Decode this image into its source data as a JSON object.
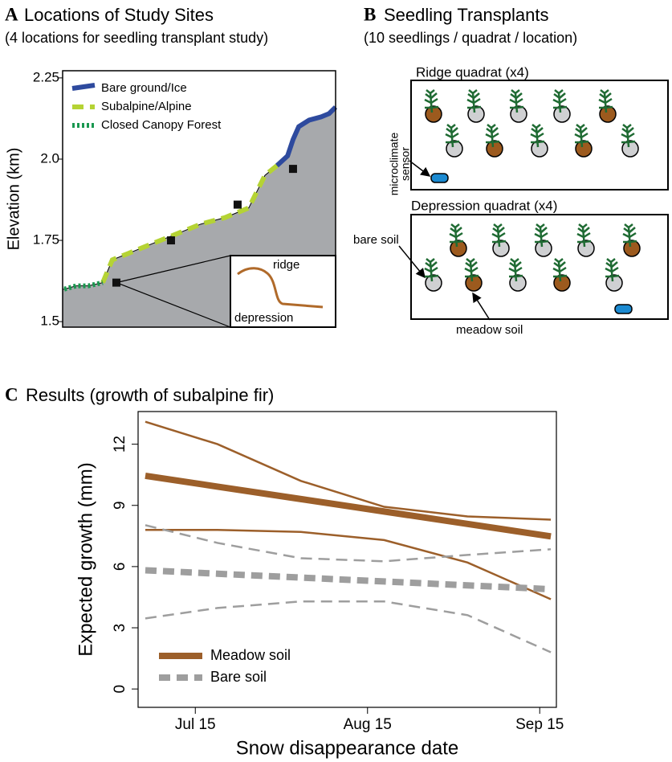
{
  "chart_data": [
    {
      "type": "profile",
      "label": "A",
      "title": "Locations of Study Sites",
      "subtitle": "(4 locations for seedling transplant study)",
      "ylabel": "Elevation (km)",
      "xlim": [
        0,
        100
      ],
      "ylim": [
        1.483,
        2.272
      ],
      "yticks": [
        1.5,
        1.75,
        {
          "value": 2,
          "label": "2.0"
        },
        2.25
      ],
      "legend": "upper-left",
      "series": [
        {
          "name": "Bare ground/Ice",
          "color": "#2e4a9e",
          "style": "solid",
          "x": [
            78.5,
            82.4,
            84.4,
            86.5,
            90.3,
            94.7,
            97.6,
            100
          ],
          "values": [
            1.98,
            2.01,
            2.06,
            2.1,
            2.12,
            2.13,
            2.14,
            2.16
          ]
        },
        {
          "name": "Subalpine/Alpine",
          "color": "#b5d334",
          "style": "dashed",
          "x": [
            14.7,
            18.2,
            24.1,
            32.9,
            41.8,
            50.6,
            59.4,
            68.2,
            74.1,
            78.5
          ],
          "values": [
            1.62,
            1.69,
            1.71,
            1.74,
            1.77,
            1.8,
            1.82,
            1.85,
            1.95,
            1.98
          ]
        },
        {
          "name": "Closed Canopy Forest",
          "color": "#1a9850",
          "style": "dotted",
          "x": [
            0.6,
            5,
            9.4,
            14.7
          ],
          "values": [
            1.6,
            1.61,
            1.61,
            1.62
          ]
        }
      ],
      "sites": {
        "x": [
          19.7,
          39.7,
          64.1,
          84.4
        ],
        "values": [
          1.62,
          1.75,
          1.86,
          1.97
        ]
      },
      "inset_labels": [
        "ridge",
        "depression"
      ]
    },
    {
      "type": "line",
      "label": "C",
      "title": "Results (growth of subalpine fir)",
      "xlabel": "Snow disappearance date",
      "ylabel": "Expected growth (mm)",
      "xlim": [
        185.7,
        261
      ],
      "ylim": [
        -0.9,
        13.6
      ],
      "xticks": [
        {
          "value": 196,
          "label": "Jul 15"
        },
        {
          "value": 227,
          "label": "Aug 15"
        },
        {
          "value": 258,
          "label": "Sep 15"
        }
      ],
      "yticks": [
        0,
        3,
        6,
        9,
        12
      ],
      "legend": "lower-left",
      "x": [
        187,
        200,
        215,
        230,
        245,
        260
      ],
      "series": [
        {
          "color": "#9c5f2a",
          "style": "solid",
          "width": 2.5,
          "values": [
            13.1,
            12.0,
            10.2,
            8.93,
            8.46,
            8.3
          ]
        },
        {
          "color": "#9c5f2a",
          "style": "solid",
          "width": 2.5,
          "values": [
            7.8,
            7.8,
            7.7,
            7.3,
            6.2,
            4.4
          ]
        },
        {
          "color": "#9e9e9e",
          "style": "dashed",
          "width": 2.5,
          "values": [
            8.03,
            7.16,
            6.41,
            6.26,
            6.57,
            6.85
          ]
        },
        {
          "color": "#9e9e9e",
          "style": "dashed",
          "width": 2.5,
          "values": [
            3.46,
            3.97,
            4.29,
            4.29,
            3.62,
            1.8
          ]
        },
        {
          "name": "Meadow soil",
          "color": "#9c5f2a",
          "style": "solid",
          "width": 8,
          "values": [
            10.45,
            9.92,
            9.31,
            8.7,
            8.09,
            7.48
          ]
        },
        {
          "name": "Bare soil",
          "color": "#9e9e9e",
          "style": "dashed",
          "width": 8,
          "values": [
            5.82,
            5.65,
            5.46,
            5.27,
            5.08,
            4.89
          ]
        }
      ]
    }
  ],
  "diagram": {
    "label": "B",
    "title": "Seedling Transplants",
    "subtitle": "(10 seedlings / quadrat / location)",
    "quadrats": [
      "Ridge quadrat (x4)",
      "Depression quadrat (x4)"
    ],
    "sensor": [
      "microclimate",
      "sensor"
    ],
    "bare_soil": "bare soil",
    "meadow_soil": "meadow soil"
  }
}
